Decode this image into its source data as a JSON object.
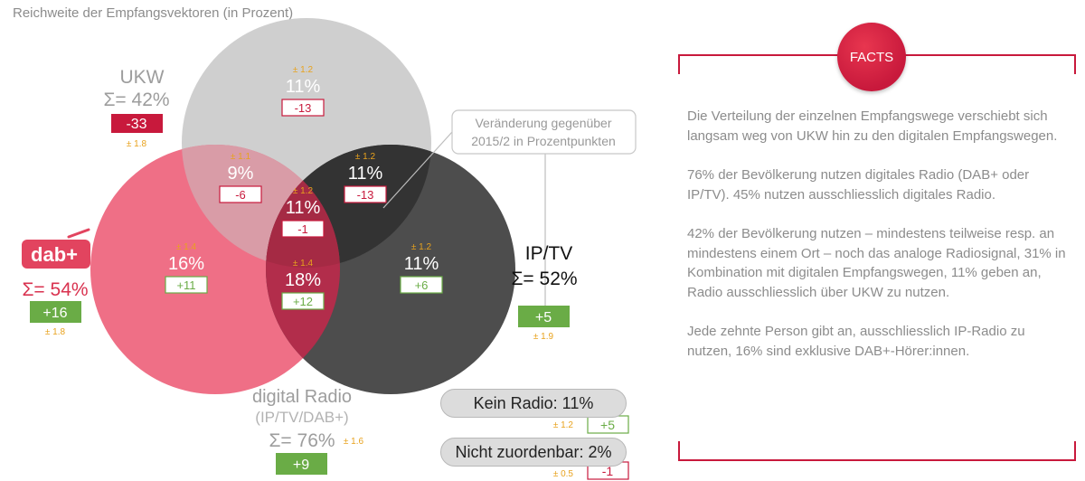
{
  "title": "Reichweite der Empfangsvektoren (in Prozent)",
  "colors": {
    "ukw": "#cfcfcf",
    "dab": "#ef6f86",
    "ip": "#4d4d4d",
    "accent": "#c8193c",
    "green": "#6aac46",
    "margin": "#e8a21d"
  },
  "diagram": {
    "ukw": {
      "name": "UKW",
      "total": "Σ= 42%",
      "change": "-33",
      "margin": "± 1.8"
    },
    "dab": {
      "logo": "dab+",
      "total": "Σ= 54%",
      "change": "+16",
      "margin": "± 1.8"
    },
    "ip": {
      "name": "IP/TV",
      "total": "Σ= 52%",
      "change": "+5",
      "margin": "± 1.9"
    },
    "digital": {
      "name": "digital Radio",
      "sub": "(IP/TV/DAB+)",
      "total": "Σ= 76%",
      "change": "+9",
      "margin": "± 1.6"
    },
    "regions": [
      {
        "id": "ukw-only",
        "margin": "± 1.2",
        "value": "11%",
        "change": "-13"
      },
      {
        "id": "ukw-dab",
        "margin": "± 1.1",
        "value": "9%",
        "change": "-6"
      },
      {
        "id": "ukw-ip",
        "margin": "± 1.2",
        "value": "11%",
        "change": "-13"
      },
      {
        "id": "all",
        "margin": "± 1.2",
        "value": "11%",
        "change": "-1"
      },
      {
        "id": "dab-only",
        "margin": "± 1.4",
        "value": "16%",
        "change": "+11"
      },
      {
        "id": "dab-ip",
        "margin": "± 1.4",
        "value": "18%",
        "change": "+12"
      },
      {
        "id": "ip-only",
        "margin": "± 1.2",
        "value": "11%",
        "change": "+6"
      }
    ],
    "callout_line1": "Veränderung gegenüber",
    "callout_line2": "2015/2 in Prozentpunkten",
    "kein_radio": {
      "label": "Kein Radio: 11%",
      "margin": "± 1.2",
      "change": "+5"
    },
    "nicht_zuordenbar": {
      "label": "Nicht zuordenbar: 2%",
      "margin": "± 0.5",
      "change": "-1"
    }
  },
  "facts": {
    "badge": "FACTS",
    "paragraphs": [
      "Die Verteilung der einzelnen Empfangswege verschiebt sich langsam weg von UKW hin zu den digitalen Empfangswegen.",
      "76% der Bevölkerung nutzen digitales Radio (DAB+ oder IP/TV). 45% nutzen ausschliesslich digitales Radio.",
      "42% der Bevölkerung nutzen – mindestens teilweise resp. an mindestens einem Ort – noch das analoge Radiosignal, 31% in Kombination mit digitalen Empfangswegen, 11% geben an, Radio ausschliesslich über UKW zu nutzen.",
      "Jede zehnte Person gibt an, ausschliesslich IP-Radio zu nutzen, 16% sind exklusive DAB+-Hörer:innen."
    ]
  }
}
